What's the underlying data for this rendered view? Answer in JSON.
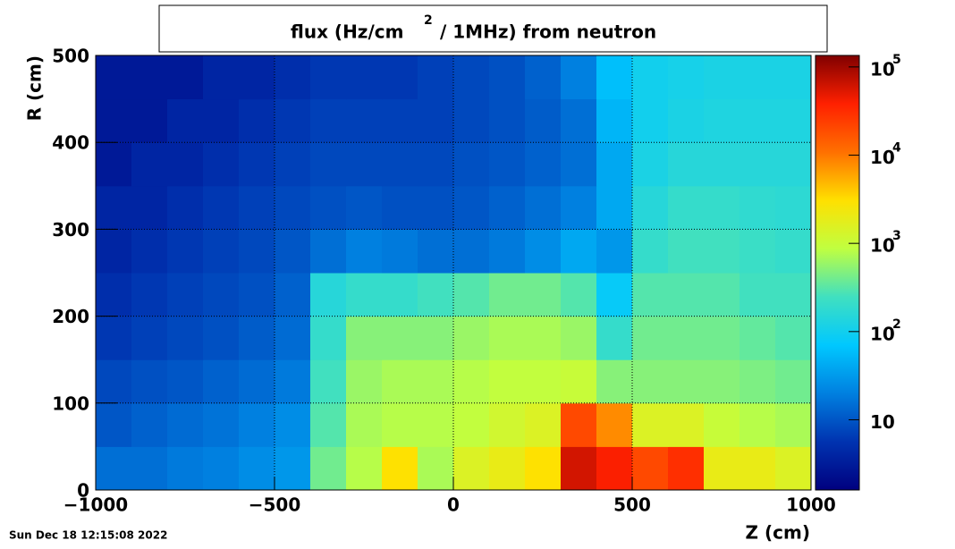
{
  "chart_data": {
    "type": "heatmap",
    "title_parts": [
      "flux (Hz/cm",
      "2",
      "/ 1MHz) from   neutron"
    ],
    "xlabel": "Z (cm)",
    "ylabel": "R (cm)",
    "timestamp": "Sun Dec 18 12:15:08 2022",
    "x_bins": [
      -1000,
      -900,
      -800,
      -700,
      -600,
      -500,
      -400,
      -300,
      -200,
      -100,
      0,
      100,
      200,
      300,
      400,
      500,
      600,
      700,
      800,
      900,
      1000
    ],
    "y_bins": [
      0,
      50,
      100,
      150,
      200,
      250,
      300,
      350,
      400,
      450,
      500
    ],
    "z": [
      [
        15,
        15,
        18,
        20,
        25,
        30,
        400,
        800,
        3000,
        700,
        1500,
        2000,
        3000,
        60000,
        40000,
        20000,
        30000,
        2000,
        2000,
        1500
      ],
      [
        10,
        12,
        14,
        16,
        20,
        25,
        300,
        700,
        800,
        800,
        900,
        1200,
        1500,
        20000,
        8000,
        1500,
        1500,
        1000,
        800,
        700
      ],
      [
        8,
        9,
        10,
        12,
        14,
        18,
        250,
        600,
        700,
        700,
        800,
        900,
        900,
        1000,
        500,
        500,
        500,
        500,
        450,
        400
      ],
      [
        6,
        7,
        8,
        9,
        11,
        14,
        200,
        500,
        500,
        500,
        600,
        700,
        700,
        600,
        200,
        400,
        400,
        400,
        350,
        300
      ],
      [
        5,
        6,
        7,
        8,
        9,
        12,
        150,
        200,
        200,
        250,
        300,
        400,
        400,
        300,
        80,
        300,
        300,
        300,
        250,
        250
      ],
      [
        4,
        5,
        6,
        7,
        8,
        10,
        15,
        20,
        18,
        15,
        15,
        18,
        25,
        40,
        30,
        200,
        250,
        250,
        220,
        200
      ],
      [
        4,
        4,
        5,
        6,
        7,
        8,
        9,
        10,
        9,
        9,
        10,
        12,
        15,
        20,
        40,
        150,
        200,
        200,
        180,
        170
      ],
      [
        3,
        4,
        4,
        5,
        6,
        7,
        8,
        8,
        8,
        8,
        9,
        10,
        12,
        15,
        40,
        120,
        150,
        150,
        150,
        150
      ],
      [
        3,
        3,
        4,
        4,
        5,
        6,
        7,
        7,
        7,
        7,
        8,
        9,
        11,
        15,
        50,
        100,
        120,
        130,
        130,
        130
      ],
      [
        3,
        3,
        3,
        4,
        4,
        5,
        6,
        6,
        6,
        7,
        8,
        9,
        12,
        20,
        60,
        100,
        110,
        120,
        120,
        120
      ]
    ],
    "xlim": [
      -1000,
      1000
    ],
    "ylim": [
      0,
      500
    ],
    "xticks": [
      {
        "value": -1000,
        "label": "−1000"
      },
      {
        "value": -500,
        "label": "−500"
      },
      0,
      500,
      1000
    ],
    "yticks": [
      0,
      100,
      200,
      300,
      400,
      500
    ],
    "zlim": [
      1.6,
      135000
    ],
    "zlog": true,
    "zticks": [
      10,
      {
        "value": 100,
        "label": "10",
        "exponent": "2"
      },
      {
        "value": 1000,
        "label": "10",
        "exponent": "3"
      },
      {
        "value": 10000,
        "label": "10",
        "exponent": "4"
      },
      {
        "value": 100000,
        "label": "10",
        "exponent": "5"
      }
    ],
    "grid": true,
    "colormap": [
      "#00007f",
      "#0033b0",
      "#0080e0",
      "#00c8ff",
      "#40e0c0",
      "#c0ff40",
      "#ffe000",
      "#ff7000",
      "#ff2000",
      "#800000"
    ]
  }
}
